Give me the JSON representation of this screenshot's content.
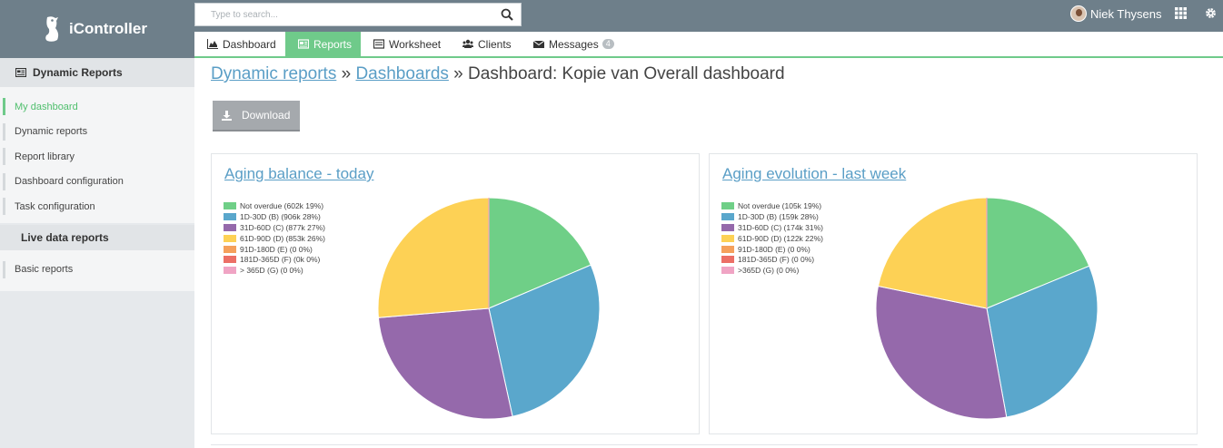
{
  "app": {
    "name": "iController"
  },
  "search": {
    "placeholder": "Type to search..."
  },
  "user": {
    "name": "Niek Thysens"
  },
  "tabs": [
    {
      "label": "Dashboard",
      "icon": "area-chart-icon",
      "active": false
    },
    {
      "label": "Reports",
      "icon": "report-icon",
      "active": true
    },
    {
      "label": "Worksheet",
      "icon": "list-icon",
      "active": false
    },
    {
      "label": "Clients",
      "icon": "users-icon",
      "active": false
    },
    {
      "label": "Messages",
      "icon": "envelope-icon",
      "active": false,
      "badge": "4"
    }
  ],
  "sidebar": {
    "header": "Dynamic Reports",
    "items": [
      {
        "label": "My dashboard",
        "active": true
      },
      {
        "label": "Dynamic reports",
        "active": false
      },
      {
        "label": "Report library",
        "active": false
      },
      {
        "label": "Dashboard configuration",
        "active": false
      },
      {
        "label": "Task configuration",
        "active": false
      }
    ],
    "subheader": "Live data reports",
    "items2": [
      {
        "label": "Basic reports",
        "active": false
      }
    ]
  },
  "breadcrumb": {
    "link1": "Dynamic reports",
    "sep1": " » ",
    "link2": "Dashboards",
    "sep2": " » ",
    "current": "Dashboard: Kopie van Overall dashboard"
  },
  "download": {
    "label": "Download"
  },
  "colors": {
    "accent": "#6fca8a",
    "topbar": "#6e7f8a",
    "link": "#5a9ec6"
  },
  "chart_data": [
    {
      "type": "pie",
      "title": "Aging balance - today",
      "legend_position": "top-left",
      "slices": [
        {
          "label": "Not overdue (602k 19%)",
          "value": 602,
          "color": "#6fcf87"
        },
        {
          "label": "1D-30D (B) (906k 28%)",
          "value": 906,
          "color": "#5aa7cc"
        },
        {
          "label": "31D-60D (C) (877k 27%)",
          "value": 877,
          "color": "#9569ab"
        },
        {
          "label": "61D-90D (D) (853k 26%)",
          "value": 853,
          "color": "#fdd155"
        },
        {
          "label": "91D-180D (E) (0 0%)",
          "value": 0,
          "color": "#f5a05c"
        },
        {
          "label": "181D-365D (F) (0k 0%)",
          "value": 0,
          "color": "#ec6f66"
        },
        {
          "label": "> 365D (G) (0 0%)",
          "value": 0,
          "color": "#f0a4c4"
        }
      ]
    },
    {
      "type": "pie",
      "title": "Aging evolution - last week",
      "legend_position": "top-left",
      "slices": [
        {
          "label": "Not overdue (105k 19%)",
          "value": 105,
          "color": "#6fcf87"
        },
        {
          "label": "1D-30D (B) (159k 28%)",
          "value": 159,
          "color": "#5aa7cc"
        },
        {
          "label": "31D-60D (C) (174k 31%)",
          "value": 174,
          "color": "#9569ab"
        },
        {
          "label": "61D-90D (D) (122k 22%)",
          "value": 122,
          "color": "#fdd155"
        },
        {
          "label": "91D-180D (E) (0 0%)",
          "value": 0,
          "color": "#f5a05c"
        },
        {
          "label": "181D-365D (F) (0 0%)",
          "value": 0,
          "color": "#ec6f66"
        },
        {
          "label": ">365D (G) (0 0%)",
          "value": 0,
          "color": "#f0a4c4"
        }
      ]
    }
  ]
}
